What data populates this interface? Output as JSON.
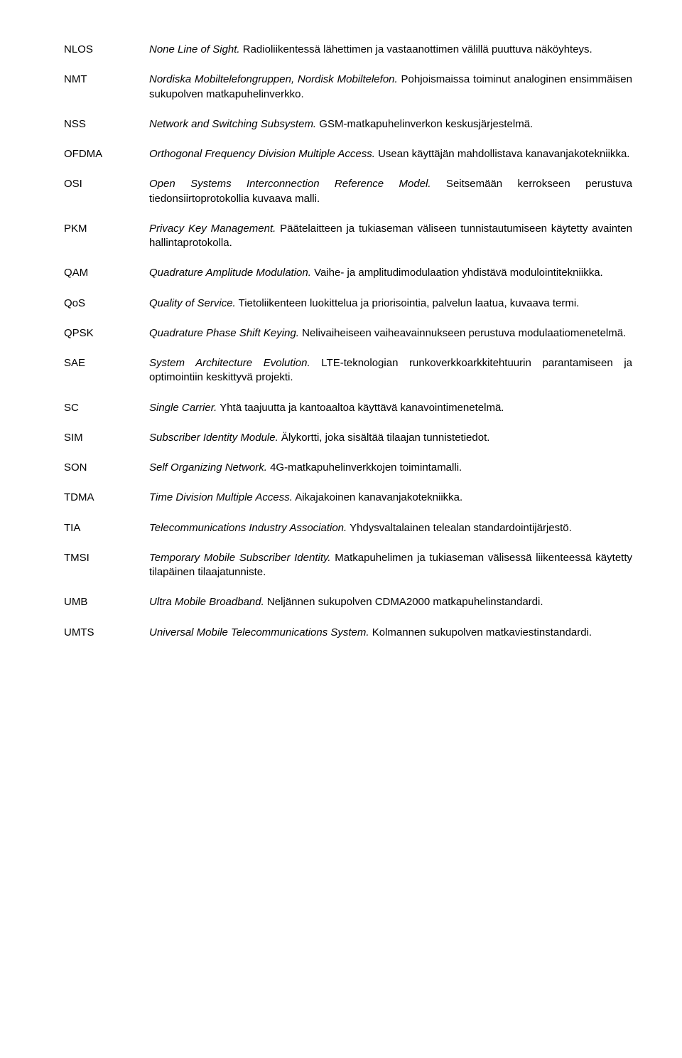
{
  "entries": [
    {
      "abbr": "NLOS",
      "term": "None Line of Sight.",
      "desc": " Radioliikentessä lähettimen ja vastaanottimen välillä puuttuva näköyhteys."
    },
    {
      "abbr": "NMT",
      "term": "Nordiska Mobiltelefongruppen, Nordisk Mobiltelefon.",
      "desc": " Pohjoismaissa toiminut analoginen ensimmäisen sukupolven matkapuhelinverkko."
    },
    {
      "abbr": "NSS",
      "term": "Network and Switching Subsystem.",
      "desc": " GSM-matkapuhelinverkon keskusjärjestelmä."
    },
    {
      "abbr": "OFDMA",
      "term": "Orthogonal Frequency Division Multiple Access.",
      "desc": " Usean käyttäjän mahdollistava kanavanjakotekniikka."
    },
    {
      "abbr": "OSI",
      "term": "Open Systems Interconnection Reference Model.",
      "desc": " Seitsemään kerrokseen perustuva tiedonsiirtoprotokollia kuvaava malli."
    },
    {
      "abbr": "PKM",
      "term": "Privacy Key Management.",
      "desc": " Päätelaitteen ja tukiaseman väliseen tunnistautumiseen käytetty avainten hallintaprotokolla."
    },
    {
      "abbr": "QAM",
      "term": "Quadrature Amplitude Modulation.",
      "desc": " Vaihe- ja amplitudimodulaation yhdistävä modulointitekniikka."
    },
    {
      "abbr": "QoS",
      "term": "Quality of Service.",
      "desc": " Tietoliikenteen luokittelua ja priorisointia, palvelun laatua, kuvaava termi."
    },
    {
      "abbr": "QPSK",
      "term": "Quadrature Phase Shift Keying.",
      "desc": " Nelivaiheiseen vaiheavainnukseen perustuva modulaatiomenetelmä."
    },
    {
      "abbr": "SAE",
      "term": "System Architecture Evolution.",
      "desc": " LTE-teknologian runkoverkkoarkkitehtuurin parantamiseen ja optimointiin keskittyvä projekti."
    },
    {
      "abbr": "SC",
      "term": "Single Carrier.",
      "desc": " Yhtä taajuutta ja kantoaaltoa käyttävä kanavointimenetelmä."
    },
    {
      "abbr": "SIM",
      "term": "Subscriber Identity Module.",
      "desc": " Älykortti, joka sisältää tilaajan tunnistetiedot."
    },
    {
      "abbr": "SON",
      "term": "Self Organizing Network.",
      "desc": " 4G-matkapuhelinverkkojen toimintamalli."
    },
    {
      "abbr": "TDMA",
      "term": "Time Division Multiple Access.",
      "desc": " Aikajakoinen kanavanjakotekniikka."
    },
    {
      "abbr": "TIA",
      "term": "Telecommunications Industry Association.",
      "desc": " Yhdysvaltalainen telealan standardointijärjestö."
    },
    {
      "abbr": "TMSI",
      "term": "Temporary Mobile Subscriber Identity.",
      "desc": " Matkapuhelimen ja tukiaseman välisessä liikenteessä käytetty tilapäinen tilaajatunniste."
    },
    {
      "abbr": "UMB",
      "term": "Ultra Mobile Broadband.",
      "desc": " Neljännen sukupolven CDMA2000 matkapuhelinstandardi."
    },
    {
      "abbr": "UMTS",
      "term": "Universal Mobile Telecommunications System.",
      "desc": " Kolmannen sukupolven matkaviestinstandardi."
    }
  ]
}
